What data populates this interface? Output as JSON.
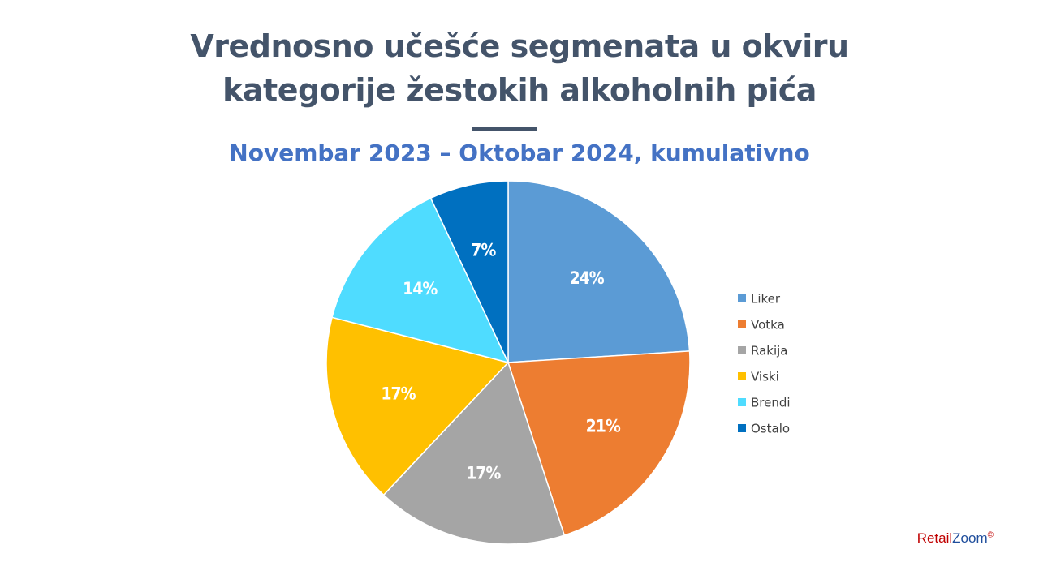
{
  "chart_data": {
    "type": "pie",
    "title": "Vrednosno učešće segmenata u okviru kategorije žestokih alkoholnih pića",
    "subtitle": "Novembar 2023 – Oktobar 2024, kumulativno",
    "categories": [
      "Liker",
      "Votka",
      "Rakija",
      "Viski",
      "Brendi",
      "Ostalo"
    ],
    "values": [
      24,
      21,
      17,
      17,
      14,
      7
    ],
    "value_labels": [
      "24%",
      "21%",
      "17%",
      "17%",
      "14%",
      "7%"
    ],
    "colors": [
      "#5b9bd5",
      "#ed7d31",
      "#a5a5a5",
      "#ffc000",
      "#4fdcff",
      "#0070c0"
    ],
    "legend": "right"
  },
  "branding": {
    "retail": "Retail",
    "zoom": "Zoom",
    "mark": "©"
  }
}
